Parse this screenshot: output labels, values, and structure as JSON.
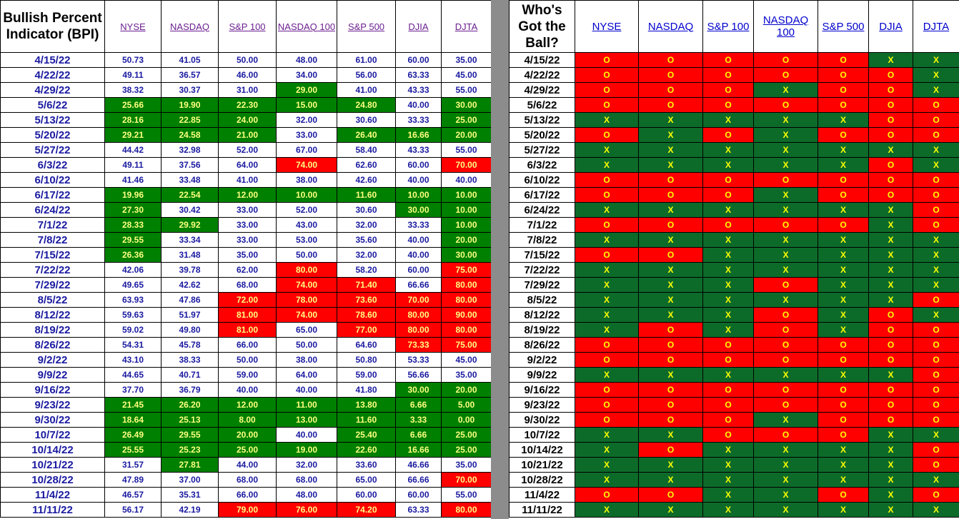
{
  "bpi": {
    "title": "Bullish Percent Indicator (BPI)",
    "columns": [
      "NYSE",
      "NASDAQ",
      "S&P 100",
      "NASDAQ 100",
      "S&P 500",
      "DJIA",
      "DJTA"
    ],
    "rows": [
      {
        "date": "4/15/22",
        "values": [
          "50.73",
          "41.05",
          "50.00",
          "48.00",
          "61.00",
          "60.00",
          "35.00"
        ],
        "colors": [
          "w",
          "w",
          "w",
          "w",
          "w",
          "w",
          "w"
        ]
      },
      {
        "date": "4/22/22",
        "values": [
          "49.11",
          "36.57",
          "46.00",
          "34.00",
          "56.00",
          "63.33",
          "45.00"
        ],
        "colors": [
          "w",
          "w",
          "w",
          "w",
          "w",
          "w",
          "w"
        ]
      },
      {
        "date": "4/29/22",
        "values": [
          "38.32",
          "30.37",
          "31.00",
          "29.00",
          "41.00",
          "43.33",
          "55.00"
        ],
        "colors": [
          "w",
          "w",
          "w",
          "g",
          "w",
          "w",
          "w"
        ]
      },
      {
        "date": "5/6/22",
        "values": [
          "25.66",
          "19.90",
          "22.30",
          "15.00",
          "24.80",
          "40.00",
          "30.00"
        ],
        "colors": [
          "g",
          "g",
          "g",
          "g",
          "g",
          "w",
          "g"
        ]
      },
      {
        "date": "5/13/22",
        "values": [
          "28.16",
          "22.85",
          "24.00",
          "32.00",
          "30.60",
          "33.33",
          "25.00"
        ],
        "colors": [
          "g",
          "g",
          "g",
          "w",
          "w",
          "w",
          "g"
        ]
      },
      {
        "date": "5/20/22",
        "values": [
          "29.21",
          "24.58",
          "21.00",
          "33.00",
          "26.40",
          "16.66",
          "20.00"
        ],
        "colors": [
          "g",
          "g",
          "g",
          "w",
          "g",
          "g",
          "g"
        ]
      },
      {
        "date": "5/27/22",
        "values": [
          "44.42",
          "32.98",
          "52.00",
          "67.00",
          "58.40",
          "43.33",
          "55.00"
        ],
        "colors": [
          "w",
          "w",
          "w",
          "w",
          "w",
          "w",
          "w"
        ]
      },
      {
        "date": "6/3/22",
        "values": [
          "49.11",
          "37.56",
          "64.00",
          "74.00",
          "62.60",
          "60.00",
          "70.00"
        ],
        "colors": [
          "w",
          "w",
          "w",
          "r",
          "w",
          "w",
          "r"
        ]
      },
      {
        "date": "6/10/22",
        "values": [
          "41.46",
          "33.48",
          "41.00",
          "38.00",
          "42.60",
          "40.00",
          "40.00"
        ],
        "colors": [
          "w",
          "w",
          "w",
          "w",
          "w",
          "w",
          "w"
        ]
      },
      {
        "date": "6/17/22",
        "values": [
          "19.96",
          "22.54",
          "12.00",
          "10.00",
          "11.60",
          "10.00",
          "10.00"
        ],
        "colors": [
          "g",
          "g",
          "g",
          "g",
          "g",
          "g",
          "g"
        ]
      },
      {
        "date": "6/24/22",
        "values": [
          "27.30",
          "30.42",
          "33.00",
          "52.00",
          "30.60",
          "30.00",
          "10.00"
        ],
        "colors": [
          "g",
          "w",
          "w",
          "w",
          "w",
          "g",
          "g"
        ]
      },
      {
        "date": "7/1/22",
        "values": [
          "28.33",
          "29.92",
          "33.00",
          "43.00",
          "32.00",
          "33.33",
          "10.00"
        ],
        "colors": [
          "g",
          "g",
          "w",
          "w",
          "w",
          "w",
          "g"
        ]
      },
      {
        "date": "7/8/22",
        "values": [
          "29.55",
          "33.34",
          "33.00",
          "53.00",
          "35.60",
          "40.00",
          "20.00"
        ],
        "colors": [
          "g",
          "w",
          "w",
          "w",
          "w",
          "w",
          "g"
        ]
      },
      {
        "date": "7/15/22",
        "values": [
          "26.36",
          "31.48",
          "35.00",
          "50.00",
          "32.00",
          "40.00",
          "30.00"
        ],
        "colors": [
          "g",
          "w",
          "w",
          "w",
          "w",
          "w",
          "g"
        ]
      },
      {
        "date": "7/22/22",
        "values": [
          "42.06",
          "39.78",
          "62.00",
          "80.00",
          "58.20",
          "60.00",
          "75.00"
        ],
        "colors": [
          "w",
          "w",
          "w",
          "r",
          "w",
          "w",
          "r"
        ]
      },
      {
        "date": "7/29/22",
        "values": [
          "49.65",
          "42.62",
          "68.00",
          "74.00",
          "71.40",
          "66.66",
          "80.00"
        ],
        "colors": [
          "w",
          "w",
          "w",
          "r",
          "r",
          "w",
          "r"
        ]
      },
      {
        "date": "8/5/22",
        "values": [
          "63.93",
          "47.86",
          "72.00",
          "78.00",
          "73.60",
          "70.00",
          "80.00"
        ],
        "colors": [
          "w",
          "w",
          "r",
          "r",
          "r",
          "r",
          "r"
        ]
      },
      {
        "date": "8/12/22",
        "values": [
          "59.63",
          "51.97",
          "81.00",
          "74.00",
          "78.60",
          "80.00",
          "90.00"
        ],
        "colors": [
          "w",
          "w",
          "r",
          "r",
          "r",
          "r",
          "r"
        ]
      },
      {
        "date": "8/19/22",
        "values": [
          "59.02",
          "49.80",
          "81.00",
          "65.00",
          "77.00",
          "80.00",
          "80.00"
        ],
        "colors": [
          "w",
          "w",
          "r",
          "w",
          "r",
          "r",
          "r"
        ]
      },
      {
        "date": "8/26/22",
        "values": [
          "54.31",
          "45.78",
          "66.00",
          "50.00",
          "64.60",
          "73.33",
          "75.00"
        ],
        "colors": [
          "w",
          "w",
          "w",
          "w",
          "w",
          "r",
          "r"
        ]
      },
      {
        "date": "9/2/22",
        "values": [
          "43.10",
          "38.33",
          "50.00",
          "38.00",
          "50.80",
          "53.33",
          "45.00"
        ],
        "colors": [
          "w",
          "w",
          "w",
          "w",
          "w",
          "w",
          "w"
        ]
      },
      {
        "date": "9/9/22",
        "values": [
          "44.65",
          "40.71",
          "59.00",
          "64.00",
          "59.00",
          "56.66",
          "35.00"
        ],
        "colors": [
          "w",
          "w",
          "w",
          "w",
          "w",
          "w",
          "w"
        ]
      },
      {
        "date": "9/16/22",
        "values": [
          "37.70",
          "36.79",
          "40.00",
          "40.00",
          "41.80",
          "30.00",
          "20.00"
        ],
        "colors": [
          "w",
          "w",
          "w",
          "w",
          "w",
          "g",
          "g"
        ]
      },
      {
        "date": "9/23/22",
        "values": [
          "21.45",
          "26.20",
          "12.00",
          "11.00",
          "13.80",
          "6.66",
          "5.00"
        ],
        "colors": [
          "g",
          "g",
          "g",
          "g",
          "g",
          "g",
          "g"
        ]
      },
      {
        "date": "9/30/22",
        "values": [
          "18.64",
          "25.13",
          "8.00",
          "13.00",
          "11.60",
          "3.33",
          "0.00"
        ],
        "colors": [
          "g",
          "g",
          "g",
          "g",
          "g",
          "g",
          "g"
        ]
      },
      {
        "date": "10/7/22",
        "values": [
          "26.49",
          "29.55",
          "20.00",
          "40.00",
          "25.40",
          "6.66",
          "25.00"
        ],
        "colors": [
          "g",
          "g",
          "g",
          "w",
          "g",
          "g",
          "g"
        ]
      },
      {
        "date": "10/14/22",
        "values": [
          "25.55",
          "25.23",
          "25.00",
          "19.00",
          "22.60",
          "16.66",
          "25.00"
        ],
        "colors": [
          "g",
          "g",
          "g",
          "g",
          "g",
          "g",
          "g"
        ]
      },
      {
        "date": "10/21/22",
        "values": [
          "31.57",
          "27.81",
          "44.00",
          "32.00",
          "33.60",
          "46.66",
          "35.00"
        ],
        "colors": [
          "w",
          "g",
          "w",
          "w",
          "w",
          "w",
          "w"
        ]
      },
      {
        "date": "10/28/22",
        "values": [
          "47.89",
          "37.00",
          "68.00",
          "68.00",
          "65.00",
          "66.66",
          "70.00"
        ],
        "colors": [
          "w",
          "w",
          "w",
          "w",
          "w",
          "w",
          "r"
        ]
      },
      {
        "date": "11/4/22",
        "values": [
          "46.57",
          "35.31",
          "66.00",
          "48.00",
          "60.00",
          "60.00",
          "55.00"
        ],
        "colors": [
          "w",
          "w",
          "w",
          "w",
          "w",
          "w",
          "w"
        ]
      },
      {
        "date": "11/11/22",
        "values": [
          "56.17",
          "42.19",
          "79.00",
          "76.00",
          "74.20",
          "63.33",
          "80.00"
        ],
        "colors": [
          "w",
          "w",
          "r",
          "r",
          "r",
          "w",
          "r"
        ]
      }
    ]
  },
  "ball": {
    "title": "Who's Got the Ball?",
    "columns": [
      "NYSE",
      "NASDAQ",
      "S&P 100",
      "NASDAQ 100",
      "S&P 500",
      "DJIA",
      "DJTA"
    ],
    "rows": [
      {
        "date": "4/15/22",
        "signals": [
          "O",
          "O",
          "O",
          "O",
          "O",
          "X",
          "X"
        ]
      },
      {
        "date": "4/22/22",
        "signals": [
          "O",
          "O",
          "O",
          "O",
          "O",
          "O",
          "X"
        ]
      },
      {
        "date": "4/29/22",
        "signals": [
          "O",
          "O",
          "O",
          "X",
          "O",
          "O",
          "X"
        ]
      },
      {
        "date": "5/6/22",
        "signals": [
          "O",
          "O",
          "O",
          "O",
          "O",
          "O",
          "O"
        ]
      },
      {
        "date": "5/13/22",
        "signals": [
          "X",
          "X",
          "X",
          "X",
          "X",
          "O",
          "O"
        ]
      },
      {
        "date": "5/20/22",
        "signals": [
          "O",
          "X",
          "O",
          "X",
          "O",
          "O",
          "O"
        ]
      },
      {
        "date": "5/27/22",
        "signals": [
          "X",
          "X",
          "X",
          "X",
          "X",
          "X",
          "X"
        ]
      },
      {
        "date": "6/3/22",
        "signals": [
          "X",
          "X",
          "X",
          "X",
          "X",
          "O",
          "X"
        ]
      },
      {
        "date": "6/10/22",
        "signals": [
          "O",
          "O",
          "O",
          "O",
          "O",
          "O",
          "O"
        ]
      },
      {
        "date": "6/17/22",
        "signals": [
          "O",
          "O",
          "O",
          "X",
          "O",
          "O",
          "O"
        ]
      },
      {
        "date": "6/24/22",
        "signals": [
          "X",
          "X",
          "X",
          "X",
          "X",
          "X",
          "O"
        ]
      },
      {
        "date": "7/1/22",
        "signals": [
          "O",
          "O",
          "O",
          "O",
          "O",
          "X",
          "O"
        ]
      },
      {
        "date": "7/8/22",
        "signals": [
          "X",
          "X",
          "X",
          "X",
          "X",
          "X",
          "X"
        ]
      },
      {
        "date": "7/15/22",
        "signals": [
          "O",
          "O",
          "X",
          "X",
          "X",
          "X",
          "X"
        ]
      },
      {
        "date": "7/22/22",
        "signals": [
          "X",
          "X",
          "X",
          "X",
          "X",
          "X",
          "X"
        ]
      },
      {
        "date": "7/29/22",
        "signals": [
          "X",
          "X",
          "X",
          "O",
          "X",
          "X",
          "X"
        ]
      },
      {
        "date": "8/5/22",
        "signals": [
          "X",
          "X",
          "X",
          "X",
          "X",
          "X",
          "O"
        ]
      },
      {
        "date": "8/12/22",
        "signals": [
          "X",
          "X",
          "X",
          "O",
          "X",
          "O",
          "X"
        ]
      },
      {
        "date": "8/19/22",
        "signals": [
          "X",
          "O",
          "X",
          "O",
          "X",
          "O",
          "O"
        ]
      },
      {
        "date": "8/26/22",
        "signals": [
          "O",
          "O",
          "O",
          "O",
          "O",
          "O",
          "O"
        ]
      },
      {
        "date": "9/2/22",
        "signals": [
          "O",
          "O",
          "O",
          "O",
          "O",
          "O",
          "O"
        ]
      },
      {
        "date": "9/9/22",
        "signals": [
          "X",
          "X",
          "X",
          "X",
          "X",
          "X",
          "O"
        ]
      },
      {
        "date": "9/16/22",
        "signals": [
          "O",
          "O",
          "O",
          "O",
          "O",
          "O",
          "O"
        ]
      },
      {
        "date": "9/23/22",
        "signals": [
          "O",
          "O",
          "O",
          "O",
          "O",
          "O",
          "O"
        ]
      },
      {
        "date": "9/30/22",
        "signals": [
          "O",
          "O",
          "O",
          "X",
          "O",
          "O",
          "O"
        ]
      },
      {
        "date": "10/7/22",
        "signals": [
          "X",
          "X",
          "O",
          "O",
          "O",
          "X",
          "X"
        ]
      },
      {
        "date": "10/14/22",
        "signals": [
          "X",
          "O",
          "X",
          "X",
          "X",
          "X",
          "O"
        ]
      },
      {
        "date": "10/21/22",
        "signals": [
          "X",
          "X",
          "X",
          "X",
          "X",
          "X",
          "O"
        ]
      },
      {
        "date": "10/28/22",
        "signals": [
          "X",
          "X",
          "X",
          "X",
          "X",
          "X",
          "X"
        ]
      },
      {
        "date": "11/4/22",
        "signals": [
          "O",
          "O",
          "X",
          "X",
          "O",
          "X",
          "O"
        ]
      },
      {
        "date": "11/11/22",
        "signals": [
          "X",
          "X",
          "X",
          "X",
          "X",
          "X",
          "X"
        ]
      }
    ]
  },
  "colors": {
    "green": "#008000",
    "dark_green": "#0d6b2a",
    "red": "#ff0000",
    "signal_text": "#ffff00",
    "value_text": "#1a1aa0",
    "link_purple": "#6b1f8f",
    "link_blue": "#0000cc",
    "gap_gray": "#8c8c8c"
  }
}
